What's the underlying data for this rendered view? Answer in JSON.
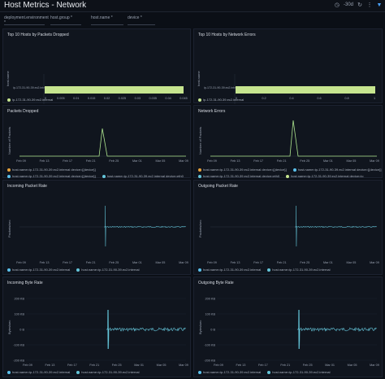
{
  "page": {
    "title": "Host Metrics - Network",
    "time_range": "-30d"
  },
  "filters": [
    {
      "label": "deployment.environment",
      "marker": "*"
    },
    {
      "label": "host.group",
      "marker": "*"
    },
    {
      "label": "host.name",
      "marker": "*"
    },
    {
      "label": "device",
      "marker": "*"
    }
  ],
  "colors": {
    "line": "#64c5d9",
    "bar": "#c6e58f",
    "spike": "#aee68f"
  },
  "panels": {
    "top_dropped": {
      "title": "Top 10 Hosts by Packets Dropped",
      "ylabel": "host.name",
      "category": "ip-172-31-90-39.ec2.internal",
      "xticks": [
        "0",
        "0.005",
        "0.01",
        "0.015",
        "0.02",
        "0.025",
        "0.03",
        "0.035",
        "0.04",
        "0.045"
      ],
      "xlabel": "sum",
      "legend": [
        "ip-172-31-90-39.ec2.internal"
      ]
    },
    "top_errors": {
      "title": "Top 10 Hosts by Network Errors",
      "ylabel": "host.name",
      "category": "ip-172-31-90-39.ec2.internal",
      "xticks": [
        "0",
        "0.2",
        "0.4",
        "0.6",
        "0.8",
        "1"
      ],
      "xlabel": "sum",
      "legend": [
        "ip-172-31-90-39.ec2.internal"
      ]
    },
    "packets_dropped": {
      "title": "Packets Dropped",
      "ylabel": "Number of Packets",
      "xticks": [
        "Feb 09",
        "Feb 13",
        "Feb 17",
        "Feb 21",
        "Feb 25",
        "Mar 01",
        "Mar 05",
        "Mar 09"
      ],
      "legend": [
        "host.name=ip-172-31-90-39.ec2.internal device=[{device}]",
        "host.name=ip-172-31-90-39.ec2.internal device=[{device}]",
        "host.name=ip-172-31-90-39.ec2.internal device=eth0",
        "host.name=ip-172-31-90-39.ec2.internal device=lo"
      ]
    },
    "network_errors": {
      "title": "Network Errors",
      "ylabel": "Number of Packets",
      "xticks": [
        "Feb 09",
        "Feb 13",
        "Feb 17",
        "Feb 21",
        "Feb 25",
        "Mar 01",
        "Mar 05",
        "Mar 09"
      ],
      "legend": [
        "host.name=ip-172-31-90-39.ec2.internal device=[{device}]",
        "host.name=ip-172-31-90-39.ec2.internal device=[{device}]",
        "host.name=ip-172-31-90-39.ec2.internal device=eth0",
        "host.name=ip-172-31-90-39.ec2.internal device=lo"
      ]
    },
    "in_packet_rate": {
      "title": "Incoming Packet Rate",
      "ylabel": "Packets/sec",
      "xticks": [
        "Feb 09",
        "Feb 13",
        "Feb 17",
        "Feb 21",
        "Feb 25",
        "Mar 01",
        "Mar 05",
        "Mar 09"
      ],
      "legend": [
        "host.name=ip-172-31-90-39.ec2.internal",
        "host.name=ip-172-31-90-39.ec2.internal"
      ]
    },
    "out_packet_rate": {
      "title": "Outgoing Packet Rate",
      "ylabel": "Packets/sec",
      "xticks": [
        "Feb 09",
        "Feb 13",
        "Feb 17",
        "Feb 21",
        "Feb 25",
        "Mar 01",
        "Mar 05",
        "Mar 09"
      ],
      "legend": [
        "host.name=ip-172-31-90-39.ec2.internal",
        "host.name=ip-172-31-90-39.ec2.internal"
      ]
    },
    "in_byte_rate": {
      "title": "Incoming Byte Rate",
      "ylabel": "Bytes/sec",
      "yticks": [
        "200 KB",
        "100 KB",
        "0 B",
        "-100 KB",
        "-200 KB"
      ],
      "xticks": [
        "Feb 09",
        "Feb 13",
        "Feb 17",
        "Feb 21",
        "Feb 25",
        "Mar 01",
        "Mar 05",
        "Mar 09"
      ],
      "legend": [
        "host.name=ip-172-31-90-39.ec2.internal",
        "host.name=ip-172-31-90-39.ec2.internal"
      ]
    },
    "out_byte_rate": {
      "title": "Outgoing Byte Rate",
      "ylabel": "Bytes/sec",
      "yticks": [
        "200 KB",
        "100 KB",
        "0 B",
        "-100 KB",
        "-200 KB"
      ],
      "xticks": [
        "Feb 09",
        "Feb 13",
        "Feb 17",
        "Feb 21",
        "Feb 25",
        "Mar 01",
        "Mar 05",
        "Mar 09"
      ],
      "legend": [
        "host.name=ip-172-31-90-39.ec2.internal",
        "host.name=ip-172-31-90-39.ec2.internal"
      ]
    }
  },
  "legend_colors": [
    "#e6a23c",
    "#5bc0eb",
    "#64c5d9",
    "#c6e58f"
  ]
}
